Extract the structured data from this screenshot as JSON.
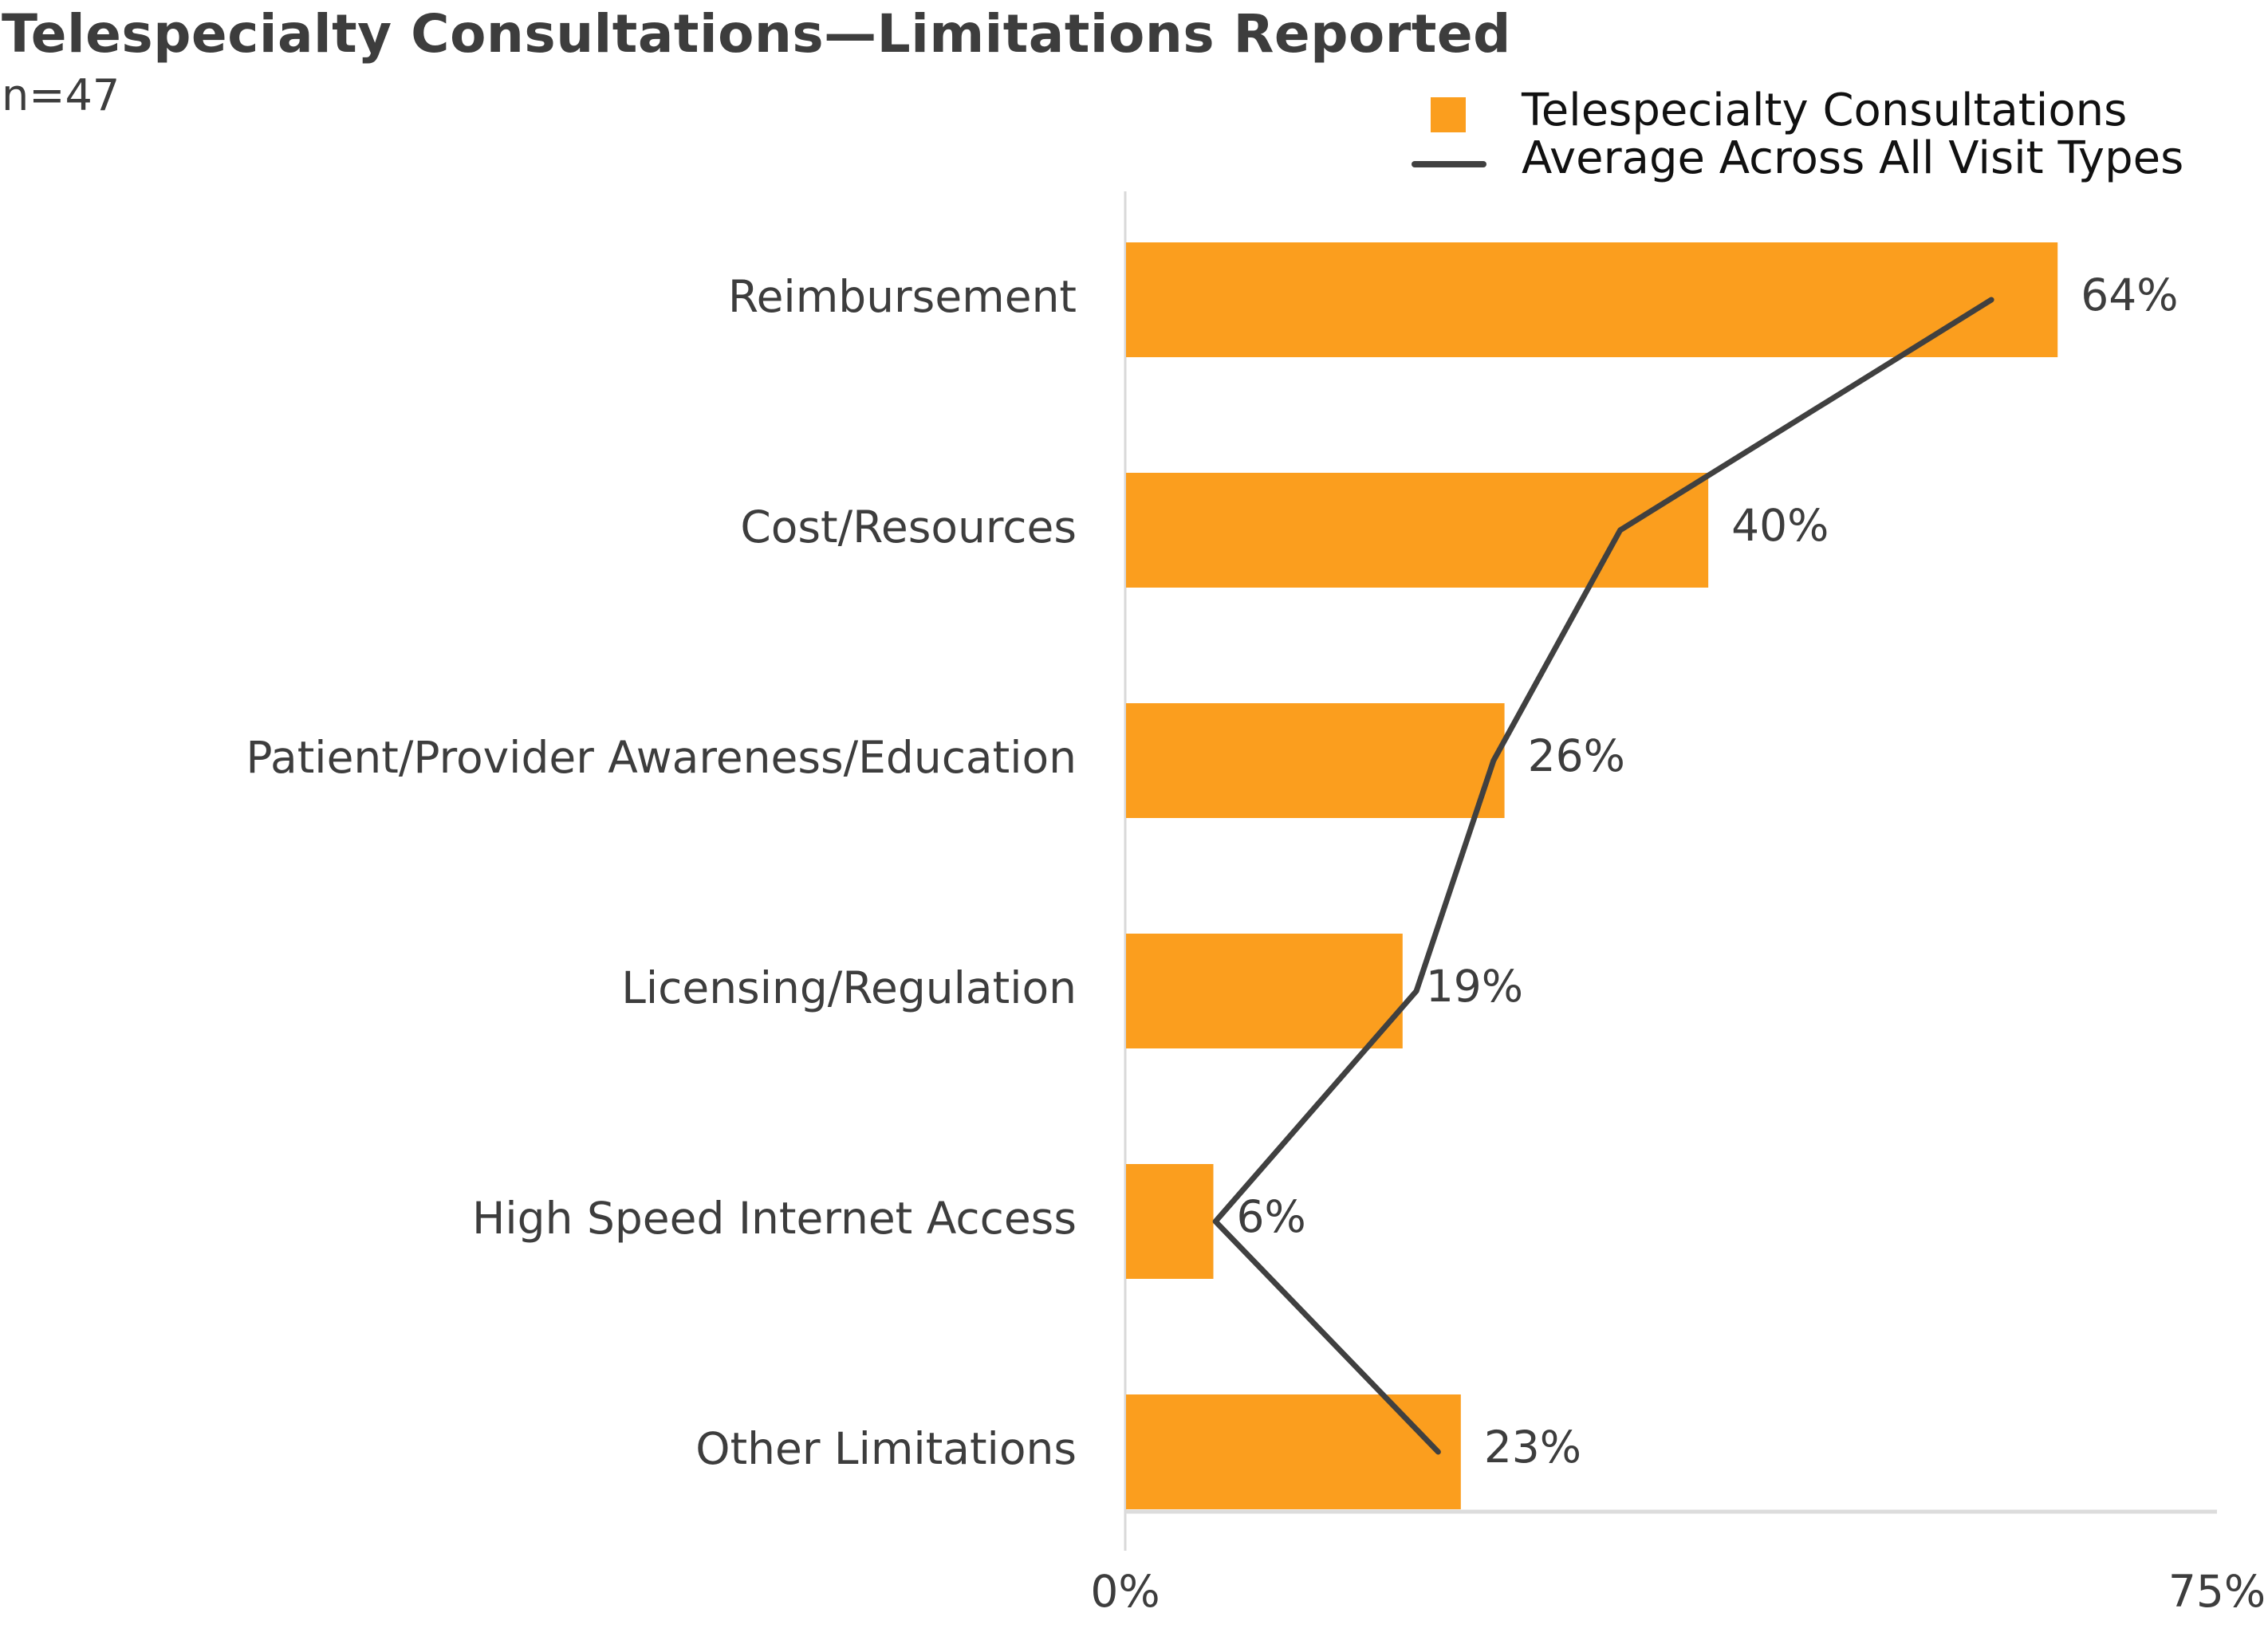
{
  "chart_data": {
    "type": "bar",
    "orientation": "horizontal",
    "title": "Telespecialty Consultations—Limitations Reported",
    "subtitle": "n=47",
    "categories": [
      "Reimbursement",
      "Cost/Resources",
      "Patient/Provider Awareness/Education",
      "Licensing/Regulation",
      "High Speed Internet Access",
      "Other Limitations"
    ],
    "series": [
      {
        "name": "Telespecialty Consultations",
        "type": "bar",
        "color": "#fb9e1e",
        "values": [
          64,
          40,
          26,
          19,
          6,
          23
        ],
        "labels": [
          "64%",
          "40%",
          "26%",
          "19%",
          "6%",
          "23%"
        ]
      },
      {
        "name": "Average Across All Visit Types",
        "type": "line",
        "color": "#404040",
        "values": [
          59.5,
          34,
          25.3,
          20,
          6.2,
          21.5
        ]
      }
    ],
    "xlabel": "",
    "ylabel": "",
    "xlim": [
      0,
      75
    ],
    "xticks": [
      "0%",
      "75%"
    ],
    "grid": false,
    "legend": "top-right"
  }
}
